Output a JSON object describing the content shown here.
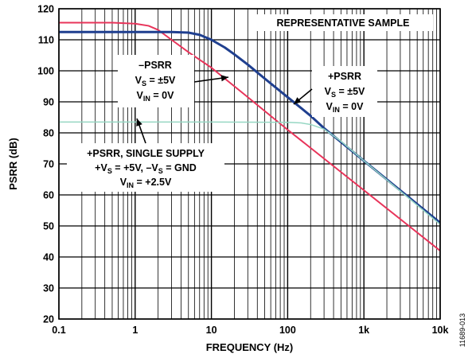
{
  "chart_data": {
    "type": "line",
    "title": "",
    "xlabel": "FREQUENCY (Hz)",
    "ylabel": "PSRR (dB)",
    "xscale": "log",
    "xlim": [
      0.1,
      10000
    ],
    "ylim": [
      20,
      120
    ],
    "grid": true,
    "x_ticks": [
      {
        "value": 0.1,
        "label": "0.1"
      },
      {
        "value": 1,
        "label": "1"
      },
      {
        "value": 10,
        "label": "10"
      },
      {
        "value": 100,
        "label": "100"
      },
      {
        "value": 1000,
        "label": "1k"
      },
      {
        "value": 10000,
        "label": "10k"
      }
    ],
    "y_ticks": [
      {
        "value": 20,
        "label": "20"
      },
      {
        "value": 30,
        "label": "30"
      },
      {
        "value": 40,
        "label": "40"
      },
      {
        "value": 50,
        "label": "50"
      },
      {
        "value": 60,
        "label": "60"
      },
      {
        "value": 70,
        "label": "70"
      },
      {
        "value": 80,
        "label": "80"
      },
      {
        "value": 90,
        "label": "90"
      },
      {
        "value": 100,
        "label": "100"
      },
      {
        "value": 110,
        "label": "110"
      },
      {
        "value": 120,
        "label": "120"
      }
    ],
    "series": [
      {
        "key": "neg-psrr",
        "color": "#e8345a",
        "width": 2,
        "x": [
          0.1,
          0.5,
          1,
          1.5,
          2,
          3,
          5,
          10,
          30,
          100,
          1000,
          10000
        ],
        "y": [
          115.5,
          115.5,
          115.2,
          114.5,
          113.2,
          110,
          106,
          101,
          91.5,
          81,
          61.5,
          42
        ]
      },
      {
        "key": "pos-psrr",
        "color": "#1f3f8f",
        "width": 3,
        "x": [
          0.1,
          1,
          3,
          5,
          7,
          10,
          15,
          20,
          30,
          50,
          100,
          200,
          300,
          1000,
          10000
        ],
        "y": [
          112.5,
          112.5,
          112.5,
          112.3,
          111.6,
          110,
          107.5,
          105.3,
          102,
          97.5,
          91.5,
          85.5,
          81.5,
          71,
          51
        ]
      },
      {
        "key": "pos-psrr-single-supply",
        "color": "#96d7c3",
        "width": 1.5,
        "x": [
          0.1,
          1,
          10,
          100,
          150,
          200,
          300,
          500,
          1000,
          10000
        ],
        "y": [
          83.5,
          83.5,
          83.5,
          83.4,
          83.2,
          82.7,
          81.2,
          77.3,
          71,
          50.5
        ]
      }
    ],
    "annotations": [
      {
        "key": "neg",
        "lines": [
          {
            "main": "–PSRR",
            "sub": "",
            "rest": ""
          },
          {
            "main": "V",
            "sub": "S",
            "rest": " = ±5V"
          },
          {
            "main": "V",
            "sub": "IN",
            "rest": " = 0V"
          }
        ]
      },
      {
        "key": "pos",
        "lines": [
          {
            "main": "+PSRR",
            "sub": "",
            "rest": ""
          },
          {
            "main": "V",
            "sub": "S",
            "rest": " = ±5V"
          },
          {
            "main": "V",
            "sub": "IN",
            "rest": " = 0V"
          }
        ]
      },
      {
        "key": "single",
        "lines": [
          {
            "main": "+PSRR, SINGLE SUPPLY",
            "sub": "",
            "rest": ""
          },
          {
            "main": "+V",
            "sub": "S",
            "rest": " = +5V, –V",
            "sub2": "S",
            "rest2": " = GND"
          },
          {
            "main": "V",
            "sub": "IN",
            "rest": " = +2.5V"
          }
        ]
      },
      {
        "key": "sample",
        "lines": [
          {
            "main": "REPRESENTATIVE SAMPLE",
            "sub": "",
            "rest": ""
          }
        ]
      }
    ]
  },
  "figure_id": "11689-013"
}
